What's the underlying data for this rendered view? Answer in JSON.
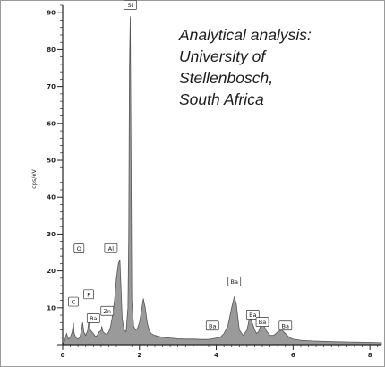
{
  "chart_data": {
    "type": "area",
    "ylabel": "cps/eV",
    "xlim": [
      0,
      8.3
    ],
    "ylim": [
      0,
      92
    ],
    "x_ticks": [
      0,
      2,
      4,
      6,
      8
    ],
    "y_ticks": [
      10,
      20,
      30,
      40,
      50,
      60,
      70,
      80,
      90
    ],
    "y_tick_labels": [
      "10",
      "20",
      "30",
      "40",
      "50",
      "60",
      "70",
      "80",
      "90"
    ],
    "x_tick_labels": [
      "0",
      "2",
      "4",
      "6",
      "8"
    ],
    "annotation": [
      "Analytical analysis:",
      "University of",
      "Stellenbosch,",
      "South Africa"
    ],
    "series": [
      {
        "x": [
          0,
          0.05,
          0.1,
          0.15,
          0.2,
          0.25,
          0.28,
          0.3,
          0.35,
          0.4,
          0.45,
          0.5,
          0.52,
          0.55,
          0.6,
          0.65,
          0.68,
          0.72,
          0.76,
          0.8,
          0.85,
          0.9,
          0.95,
          1.0,
          1.02,
          1.05,
          1.1,
          1.15,
          1.2,
          1.25,
          1.3,
          1.35,
          1.4,
          1.45,
          1.49,
          1.52,
          1.55,
          1.6,
          1.65,
          1.7,
          1.72,
          1.74,
          1.76,
          1.78,
          1.8,
          1.85,
          1.9,
          1.95,
          2.0,
          2.05,
          2.1,
          2.15,
          2.2,
          2.25,
          2.3,
          2.4,
          2.6,
          2.8,
          3.0,
          3.2,
          3.4,
          3.6,
          3.8,
          3.9,
          4.0,
          4.1,
          4.2,
          4.3,
          4.4,
          4.47,
          4.52,
          4.6,
          4.7,
          4.8,
          4.85,
          4.9,
          4.95,
          5.0,
          5.05,
          5.1,
          5.15,
          5.2,
          5.3,
          5.4,
          5.5,
          5.6,
          5.7,
          5.8,
          5.9,
          6.0,
          6.2,
          6.5,
          7.0,
          7.5,
          8.0,
          8.3
        ],
        "y": [
          0,
          1,
          3,
          1.5,
          2,
          3.5,
          6,
          3,
          1.8,
          1.5,
          2,
          4.5,
          6,
          3.5,
          2.5,
          3.8,
          6.5,
          4,
          3.5,
          3,
          2.2,
          2.5,
          3.5,
          3.8,
          5,
          3.5,
          3,
          2.8,
          3.5,
          5,
          8,
          12,
          18,
          22,
          23,
          15,
          7,
          4,
          3.5,
          10,
          30,
          75,
          89,
          55,
          12,
          5,
          4,
          4.5,
          6,
          9,
          12.5,
          10,
          6,
          4,
          3,
          2.5,
          2,
          1.8,
          1.6,
          1.5,
          1.5,
          1.4,
          1.4,
          1.6,
          1.8,
          2,
          3,
          5,
          10,
          13,
          11,
          4,
          2.5,
          4,
          6.5,
          7,
          5.5,
          4,
          3,
          3.5,
          5,
          6,
          3.8,
          2.5,
          2.5,
          3.5,
          4,
          3,
          2,
          1.5,
          1.2,
          1,
          0.8,
          0.7,
          0.6,
          0.5
        ]
      }
    ],
    "peaks": [
      {
        "label": "Si",
        "x": 1.76,
        "y": 89
      },
      {
        "label": "Al",
        "x": 1.49,
        "y": 23
      },
      {
        "label": "O",
        "x": 0.52,
        "y": 20
      },
      {
        "label": "F",
        "x": 0.68,
        "y": 10
      },
      {
        "label": "C",
        "x": 0.28,
        "y": 8
      },
      {
        "label": "Zn",
        "x": 1.02,
        "y": 6
      },
      {
        "label": "Ba",
        "x": 0.8,
        "y": 4
      },
      {
        "label": "Ba",
        "x": 4.47,
        "y": 14
      },
      {
        "label": "Ba",
        "x": 3.9,
        "y": 2
      },
      {
        "label": "Ba",
        "x": 4.95,
        "y": 5
      },
      {
        "label": "Ba",
        "x": 5.2,
        "y": 3
      },
      {
        "label": "Ba",
        "x": 5.8,
        "y": 2
      }
    ],
    "fill_color": "#9a9a9a",
    "line_color": "#555555",
    "axis_color": "#222222"
  }
}
